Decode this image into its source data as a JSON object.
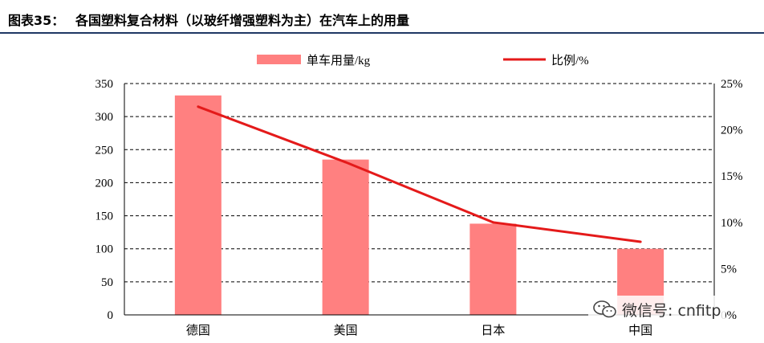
{
  "figure": {
    "label": "图表35：",
    "title": "各国塑料复合材料（以玻纤增强塑料为主）在汽车上的用量"
  },
  "colors": {
    "bar": "#ff8080",
    "line": "#e41a1a",
    "header_rule": "#1f3864"
  },
  "watermark": {
    "text": "微信号: cnfitp",
    "icon": "wechat-icon"
  },
  "chart_data": {
    "type": "bar",
    "categories": [
      "德国",
      "美国",
      "日本",
      "中国"
    ],
    "series": [
      {
        "name": "单车用量/kg",
        "type": "bar",
        "axis": "left",
        "values": [
          332,
          235,
          138,
          100
        ]
      },
      {
        "name": "比例/%",
        "type": "line",
        "axis": "right",
        "values": [
          22.5,
          16.5,
          10.0,
          7.9
        ]
      }
    ],
    "y_left": {
      "ylim": [
        0,
        350
      ],
      "ticks": [
        "0",
        "50",
        "100",
        "150",
        "200",
        "250",
        "300",
        "350"
      ],
      "tick_values": [
        0,
        50,
        100,
        150,
        200,
        250,
        300,
        350
      ]
    },
    "y_right": {
      "ylim": [
        0,
        25
      ],
      "ticks": [
        "0%",
        "5%",
        "10%",
        "15%",
        "20%",
        "25%"
      ],
      "tick_values": [
        0,
        5,
        10,
        15,
        20,
        25
      ]
    },
    "grid": true,
    "legend_position": "top"
  }
}
